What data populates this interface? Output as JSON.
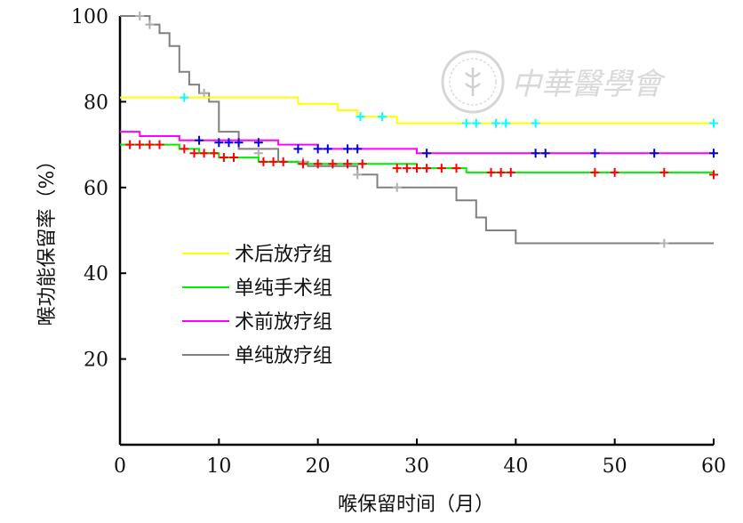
{
  "chart_data": {
    "type": "line",
    "title": "",
    "xlabel": "喉保留时间（月）",
    "ylabel": "喉功能保留率（%）",
    "xlim": [
      0,
      60
    ],
    "ylim": [
      0,
      100
    ],
    "xticks": [
      0,
      10,
      20,
      30,
      40,
      50,
      60
    ],
    "yticks": [
      20,
      40,
      60,
      80,
      100
    ],
    "xtick_labels": [
      "0",
      "10",
      "20",
      "30",
      "40",
      "50",
      "60"
    ],
    "ytick_labels": [
      "20",
      "40",
      "60",
      "80",
      "100"
    ],
    "grid": false,
    "legend_position": "center-left",
    "series": [
      {
        "name": "术后放疗组",
        "color": "#ffff00",
        "censor_color": "#00ffff",
        "steps": [
          [
            0,
            81
          ],
          [
            18,
            81
          ],
          [
            18,
            79.5
          ],
          [
            22,
            79.5
          ],
          [
            22,
            78
          ],
          [
            24,
            78
          ],
          [
            24,
            76.5
          ],
          [
            28,
            76.5
          ],
          [
            28,
            75
          ],
          [
            60,
            75
          ]
        ],
        "censored": [
          [
            6.5,
            81
          ],
          [
            24.3,
            76.5
          ],
          [
            26.5,
            76.5
          ],
          [
            35,
            75
          ],
          [
            36,
            75
          ],
          [
            38,
            75
          ],
          [
            39,
            75
          ],
          [
            42,
            75
          ],
          [
            60,
            75
          ]
        ]
      },
      {
        "name": "单纯手术组",
        "color": "#00ee00",
        "censor_color": "#ff0000",
        "steps": [
          [
            0,
            70
          ],
          [
            6,
            70
          ],
          [
            6,
            69
          ],
          [
            8,
            69
          ],
          [
            8,
            68
          ],
          [
            10,
            68
          ],
          [
            10,
            67
          ],
          [
            14,
            67
          ],
          [
            14,
            66
          ],
          [
            18,
            66
          ],
          [
            18,
            65.5
          ],
          [
            30,
            65.5
          ],
          [
            30,
            64.5
          ],
          [
            35,
            64.5
          ],
          [
            35,
            63.5
          ],
          [
            60,
            63.5
          ]
        ],
        "censored": [
          [
            1,
            70
          ],
          [
            2,
            70
          ],
          [
            3,
            70
          ],
          [
            4,
            70
          ],
          [
            6.5,
            69
          ],
          [
            7.5,
            68
          ],
          [
            8.5,
            68
          ],
          [
            9.5,
            68
          ],
          [
            10.5,
            67
          ],
          [
            11.5,
            67
          ],
          [
            14.5,
            66
          ],
          [
            15.5,
            66
          ],
          [
            16.5,
            66
          ],
          [
            18.5,
            65.5
          ],
          [
            20,
            65.5
          ],
          [
            21.5,
            65.5
          ],
          [
            23,
            65.5
          ],
          [
            24.5,
            65.5
          ],
          [
            28,
            64.5
          ],
          [
            29,
            64.5
          ],
          [
            30,
            64.5
          ],
          [
            31,
            64.5
          ],
          [
            32.5,
            64.5
          ],
          [
            34,
            64.5
          ],
          [
            37.5,
            63.5
          ],
          [
            38.5,
            63.5
          ],
          [
            39.5,
            63.5
          ],
          [
            48,
            63.5
          ],
          [
            50,
            63.5
          ],
          [
            55,
            63.5
          ],
          [
            60,
            63
          ]
        ]
      },
      {
        "name": "术前放疗组",
        "color": "#ff00ff",
        "censor_color": "#0000dd",
        "steps": [
          [
            0,
            73
          ],
          [
            2,
            73
          ],
          [
            2,
            72
          ],
          [
            6,
            72
          ],
          [
            6,
            71
          ],
          [
            16,
            71
          ],
          [
            16,
            70
          ],
          [
            20,
            70
          ],
          [
            20,
            69
          ],
          [
            30,
            69
          ],
          [
            30,
            68
          ],
          [
            60,
            68
          ]
        ],
        "censored": [
          [
            8,
            71
          ],
          [
            10,
            70.5
          ],
          [
            11,
            70.5
          ],
          [
            12,
            70.5
          ],
          [
            14,
            70.5
          ],
          [
            18,
            69
          ],
          [
            20,
            69
          ],
          [
            21,
            69
          ],
          [
            23,
            69
          ],
          [
            24,
            69
          ],
          [
            31,
            68
          ],
          [
            42,
            68
          ],
          [
            43,
            68
          ],
          [
            48,
            68
          ],
          [
            54,
            68
          ],
          [
            60,
            68
          ]
        ]
      },
      {
        "name": "单纯放疗组",
        "color": "#808080",
        "censor_color": "#b0b0b0",
        "steps": [
          [
            0,
            100
          ],
          [
            3,
            100
          ],
          [
            3,
            98
          ],
          [
            4,
            98
          ],
          [
            4,
            96
          ],
          [
            5,
            96
          ],
          [
            5,
            93
          ],
          [
            6,
            93
          ],
          [
            6,
            87
          ],
          [
            7,
            87
          ],
          [
            7,
            84
          ],
          [
            8,
            84
          ],
          [
            8,
            82
          ],
          [
            9,
            82
          ],
          [
            9,
            80
          ],
          [
            10,
            80
          ],
          [
            10,
            73
          ],
          [
            12,
            73
          ],
          [
            12,
            69
          ],
          [
            16,
            69
          ],
          [
            16,
            66
          ],
          [
            19,
            66
          ],
          [
            19,
            65
          ],
          [
            24,
            65
          ],
          [
            24,
            63
          ],
          [
            26,
            63
          ],
          [
            26,
            60
          ],
          [
            34,
            60
          ],
          [
            34,
            57
          ],
          [
            36,
            57
          ],
          [
            36,
            53
          ],
          [
            37,
            53
          ],
          [
            37,
            50
          ],
          [
            40,
            50
          ],
          [
            40,
            47
          ],
          [
            60,
            47
          ]
        ],
        "censored": [
          [
            2,
            100
          ],
          [
            3,
            98
          ],
          [
            8.5,
            82
          ],
          [
            14,
            68
          ],
          [
            18.5,
            66
          ],
          [
            24,
            63
          ],
          [
            28,
            60
          ],
          [
            55,
            47
          ]
        ]
      }
    ]
  },
  "watermark": {
    "text": "中華醫學會",
    "seal_icon": "medical-association-seal-icon"
  }
}
